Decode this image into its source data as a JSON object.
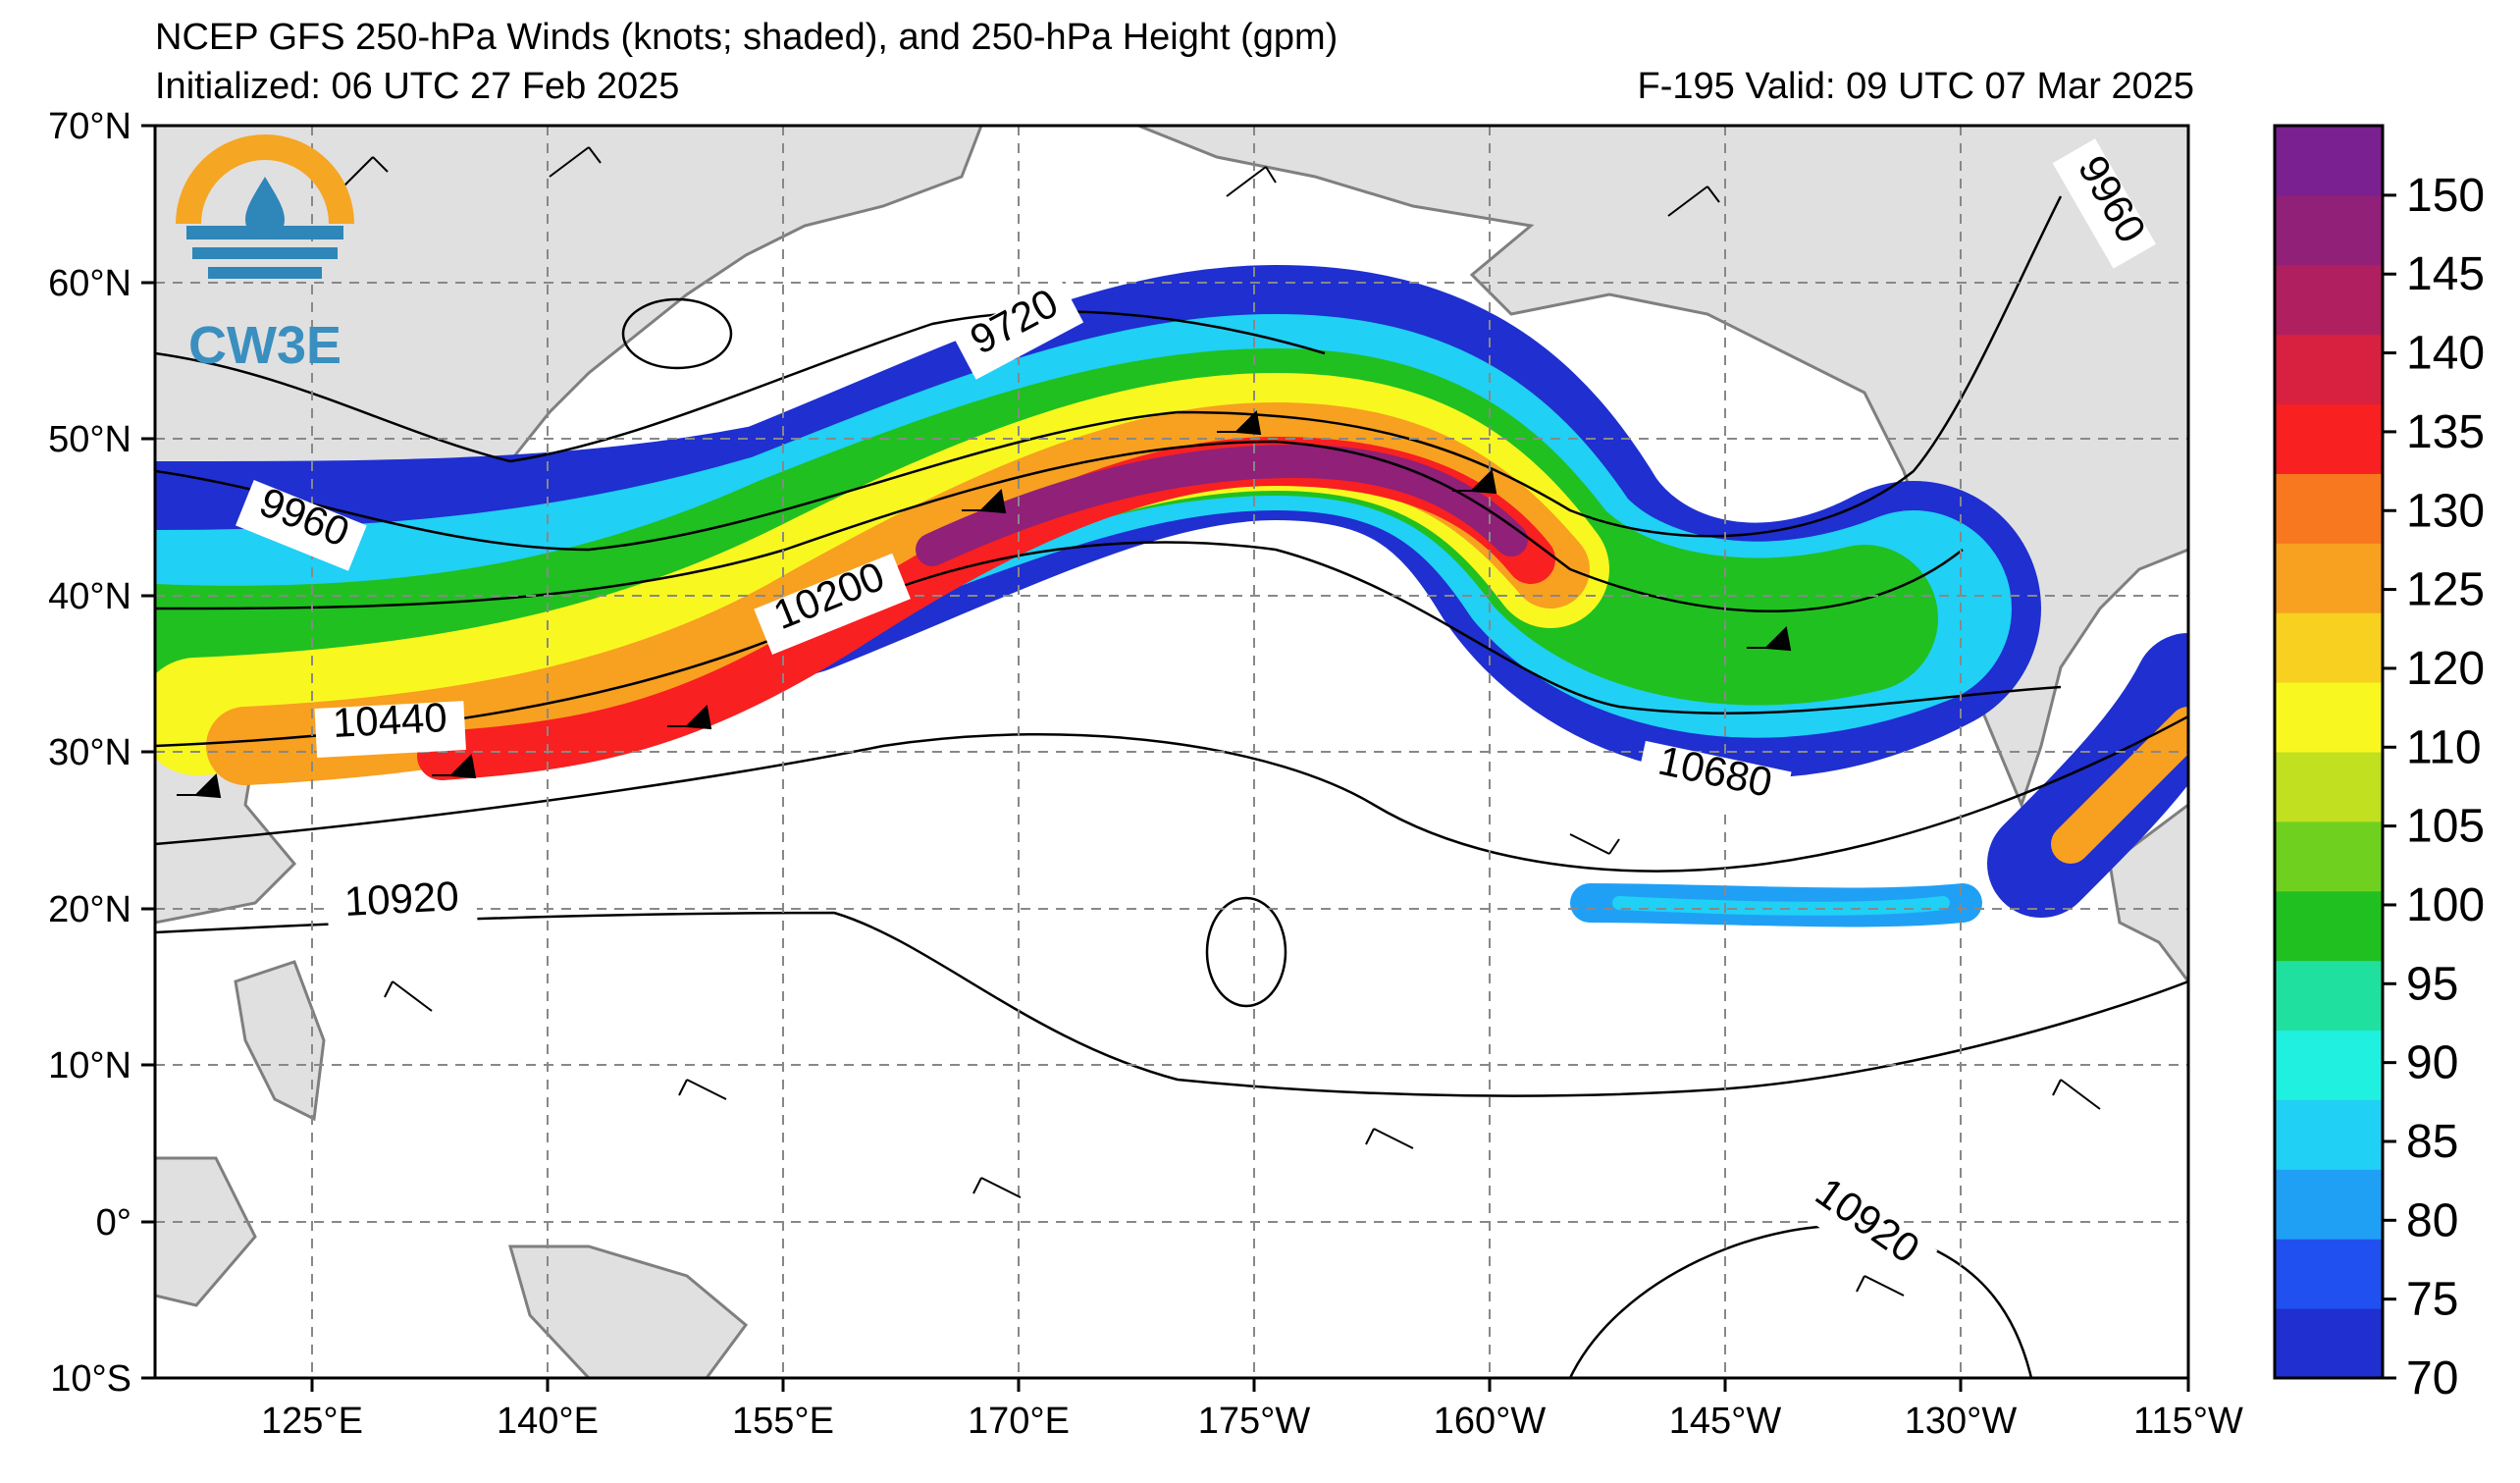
{
  "header": {
    "title": "NCEP GFS 250-hPa Winds (knots; shaded), and 250-hPa Height (gpm)",
    "initialized": "Initialized: 06 UTC 27 Feb 2025",
    "valid": "F-195  Valid: 09 UTC 07 Mar 2025"
  },
  "logo": {
    "text": "CW3E"
  },
  "map": {
    "lon_labels": [
      "125°E",
      "140°E",
      "155°E",
      "170°E",
      "175°W",
      "160°W",
      "145°W",
      "130°W",
      "115°W"
    ],
    "lat_labels": [
      "70°N",
      "60°N",
      "50°N",
      "40°N",
      "30°N",
      "20°N",
      "10°N",
      "0°",
      "10°S"
    ],
    "land_color": "#e0e0e0",
    "coast_color": "#7f7f7f"
  },
  "contour_labels": [
    "9720",
    "9960",
    "9960",
    "10200",
    "10440",
    "10680",
    "10920",
    "10920"
  ],
  "colorbar": {
    "levels": [
      "70",
      "75",
      "80",
      "85",
      "90",
      "95",
      "100",
      "105",
      "110",
      "120",
      "125",
      "130",
      "135",
      "140",
      "145",
      "150"
    ],
    "colors": [
      "#1f2fd0",
      "#2050f0",
      "#20a0f5",
      "#20d0f5",
      "#20f0e0",
      "#20e0a0",
      "#20c020",
      "#70d020",
      "#c0e020",
      "#f8f820",
      "#f8d020",
      "#f8a020",
      "#f87820",
      "#f82020",
      "#d82040",
      "#b02060",
      "#902078",
      "#7a2090"
    ]
  }
}
